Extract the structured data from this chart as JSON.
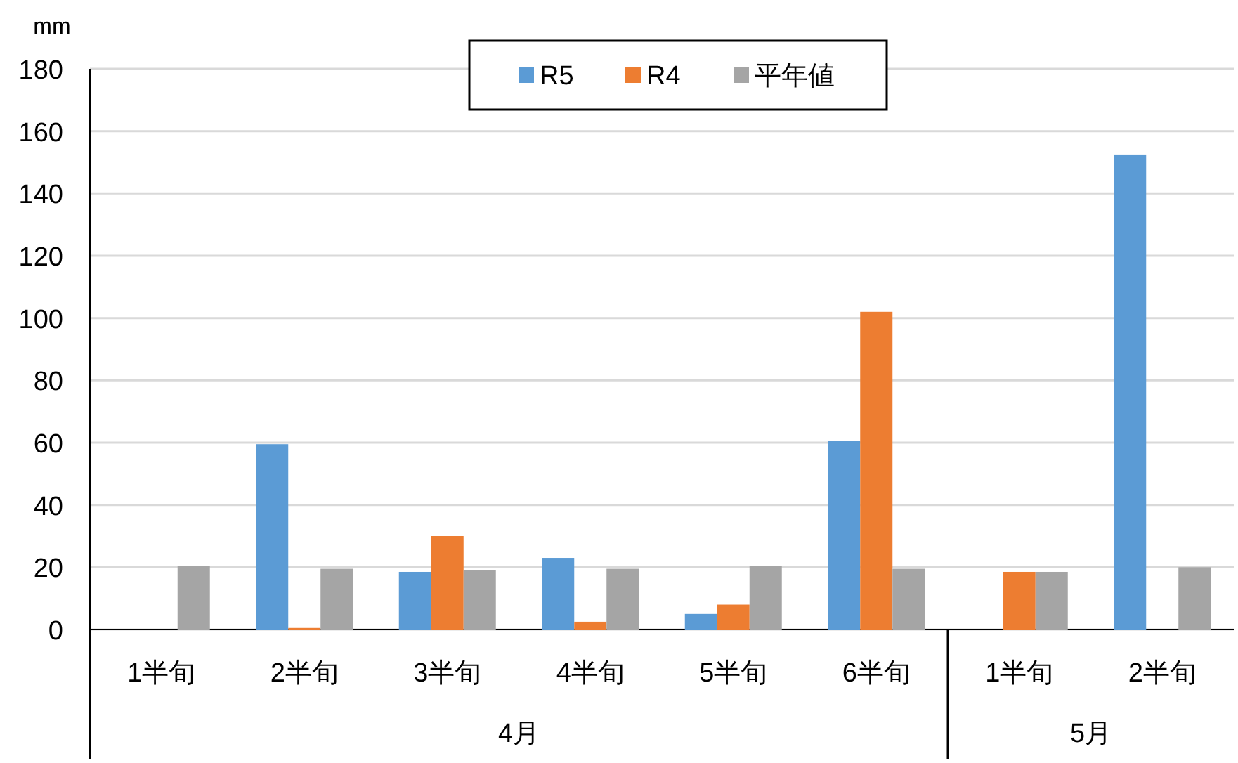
{
  "chart_data": {
    "type": "bar",
    "ylabel": "mm",
    "categories": [
      "1半旬",
      "2半旬",
      "3半旬",
      "4半旬",
      "5半旬",
      "6半旬",
      "1半旬",
      "2半旬"
    ],
    "series": [
      {
        "name": "R5",
        "color": "#5b9bd5",
        "values": [
          null,
          59.5,
          18.5,
          23,
          5,
          60.5,
          null,
          152.5
        ]
      },
      {
        "name": "R4",
        "color": "#ed7d31",
        "values": [
          null,
          0.5,
          30,
          2.5,
          8,
          102,
          18.5,
          null
        ]
      },
      {
        "name": "平年値",
        "color": "#a5a5a5",
        "values": [
          20.5,
          19.5,
          19,
          19.5,
          20.5,
          19.5,
          18.5,
          20
        ]
      }
    ],
    "annotations": [
      "4月",
      "5月"
    ],
    "ylim": [
      0,
      180
    ],
    "yticks": [
      0,
      20,
      40,
      60,
      80,
      100,
      120,
      140,
      160,
      180
    ],
    "grid": "y",
    "legend": "top"
  }
}
